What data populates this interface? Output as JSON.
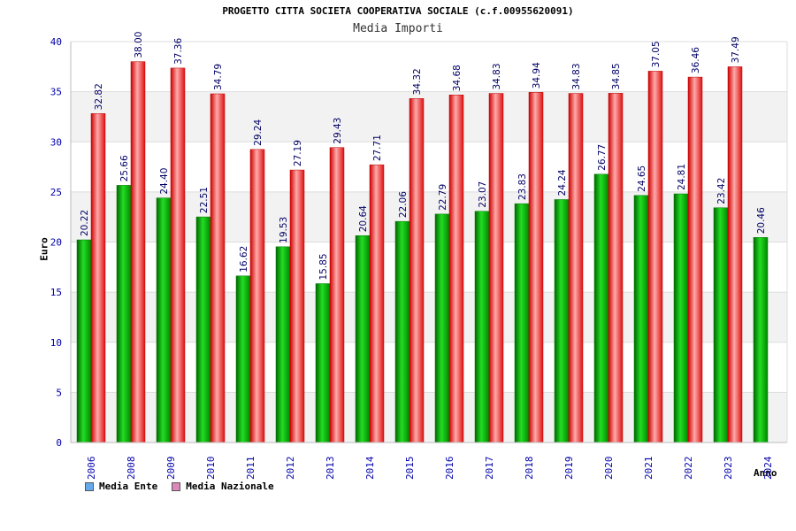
{
  "chart_data": {
    "type": "bar",
    "title": "PROGETTO CITTA SOCIETA COOPERATIVA SOCIALE (c.f.00955620091)",
    "subtitle": "Media Importi",
    "xlabel": "Anno",
    "ylabel": "Euro",
    "ylim": [
      0,
      40
    ],
    "yticks": [
      "0",
      "5",
      "10",
      "15",
      "20",
      "25",
      "30",
      "35",
      "40"
    ],
    "categories": [
      "2006",
      "2008",
      "2009",
      "2010",
      "2011",
      "2012",
      "2013",
      "2014",
      "2015",
      "2016",
      "2017",
      "2018",
      "2019",
      "2020",
      "2021",
      "2022",
      "2023",
      "2024"
    ],
    "series": [
      {
        "name": "Media Ente",
        "color": "#00aa00",
        "values": [
          20.22,
          25.66,
          24.4,
          22.51,
          16.62,
          19.53,
          15.85,
          20.64,
          22.06,
          22.79,
          23.07,
          23.83,
          24.24,
          26.77,
          24.65,
          24.81,
          23.42,
          20.46
        ],
        "labels": [
          "20.22",
          "25.66",
          "24.40",
          "22.51",
          "16.62",
          "19.53",
          "15.85",
          "20.64",
          "22.06",
          "22.79",
          "23.07",
          "23.83",
          "24.24",
          "26.77",
          "24.65",
          "24.81",
          "23.42",
          "20.46"
        ]
      },
      {
        "name": "Media Nazionale",
        "color": "#ee2222",
        "values": [
          32.82,
          38.0,
          37.36,
          34.79,
          29.24,
          27.19,
          29.43,
          27.71,
          34.32,
          34.68,
          34.83,
          34.94,
          34.83,
          34.85,
          37.05,
          36.46,
          37.49,
          null
        ],
        "labels": [
          "32.82",
          "38.00",
          "37.36",
          "34.79",
          "29.24",
          "27.19",
          "29.43",
          "27.71",
          "34.32",
          "34.68",
          "34.83",
          "34.94",
          "34.83",
          "34.85",
          "37.05",
          "36.46",
          "37.49",
          null
        ]
      }
    ],
    "legend": [
      {
        "label": "Media Ente",
        "color": "#66aaee"
      },
      {
        "label": "Media Nazionale",
        "color": "#dd88bb"
      }
    ],
    "legend_position": "bottom-left",
    "grid": true
  }
}
